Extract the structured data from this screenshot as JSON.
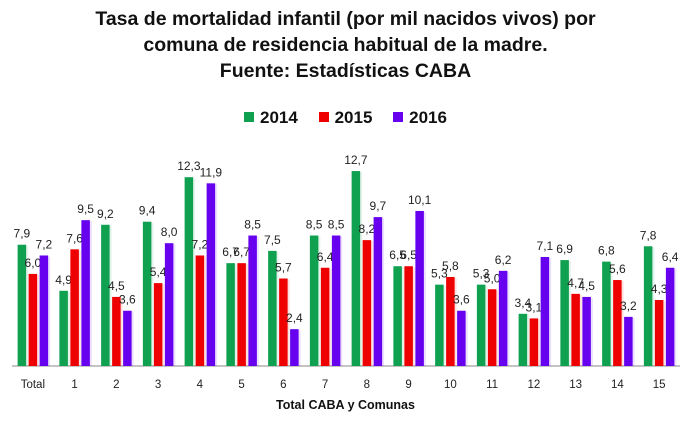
{
  "chart_data": {
    "type": "bar",
    "title_lines": [
      "Tasa de mortalidad infantil (por mil nacidos vivos) por",
      "comuna de residencia habitual de la madre.",
      "Fuente: Estadísticas CABA"
    ],
    "xlabel": "Total CABA y Comunas",
    "ylabel": "",
    "categories": [
      "Total",
      "1",
      "2",
      "3",
      "4",
      "5",
      "6",
      "7",
      "8",
      "9",
      "10",
      "11",
      "12",
      "13",
      "14",
      "15"
    ],
    "series": [
      {
        "name": "2014",
        "color": "#0FA050",
        "values": [
          7.9,
          4.9,
          9.2,
          9.4,
          12.3,
          6.7,
          7.5,
          8.5,
          12.7,
          6.5,
          5.3,
          5.3,
          3.4,
          6.9,
          6.8,
          7.8
        ]
      },
      {
        "name": "2015",
        "color": "#EE0000",
        "values": [
          6.0,
          7.6,
          4.5,
          5.4,
          7.2,
          6.7,
          5.7,
          6.4,
          8.2,
          6.5,
          5.8,
          5.0,
          3.1,
          4.7,
          5.6,
          4.3
        ]
      },
      {
        "name": "2016",
        "color": "#6600EE",
        "values": [
          7.2,
          9.5,
          3.6,
          8.0,
          11.9,
          8.5,
          2.4,
          8.5,
          9.7,
          10.1,
          3.6,
          6.2,
          7.1,
          4.5,
          3.2,
          6.4
        ]
      }
    ],
    "ylim": [
      0,
      13
    ],
    "grid": false,
    "legend_position": "top-center",
    "decimal_separator": ","
  }
}
